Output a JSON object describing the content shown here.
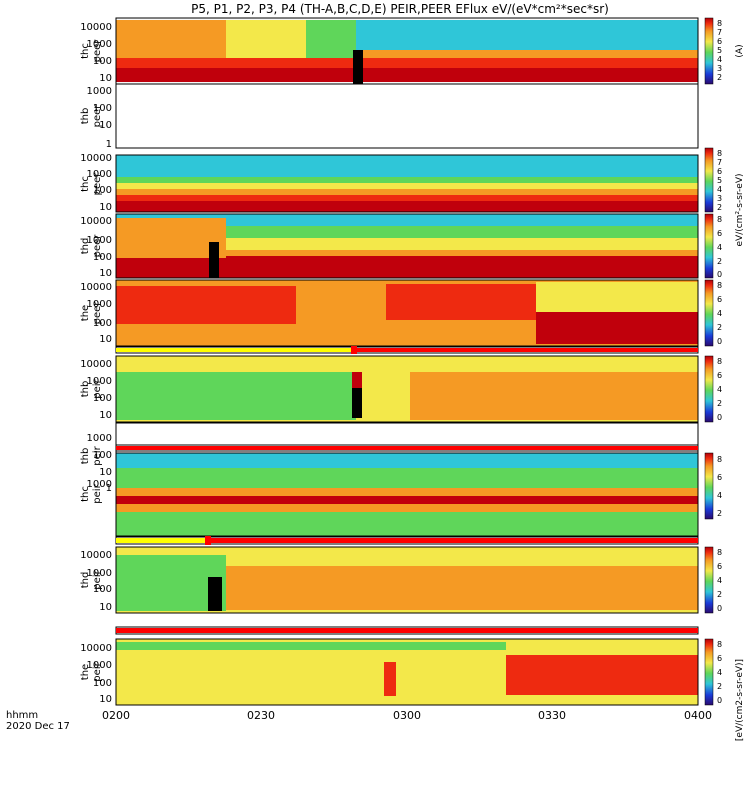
{
  "title": "P5, P1, P2, P3, P4 (TH-A,B,C,D,E) PEIR,PEER EFlux eV/(eV*cm²*sec*sr)",
  "time_axis": {
    "label_top": "hhmm",
    "label_bottom": "2020 Dec 17",
    "ticks": [
      "0200",
      "0230",
      "0300",
      "0330",
      "0400"
    ]
  },
  "colors": {
    "deep_red": "#c0000c",
    "red": "#ee2a10",
    "orange": "#f59a24",
    "yellow": "#f3e84a",
    "green": "#5fd65a",
    "cyan": "#2fc6d8",
    "blue": "#1a3bd8",
    "flag_red": "#ff0000",
    "flag_yellow": "#ffff00"
  },
  "chart_data": [
    {
      "type": "heatmap",
      "panel": "thc peer",
      "ylabel": [
        "thc",
        "peer"
      ],
      "yscale": "log",
      "ylim": [
        6,
        30000
      ],
      "yticks": [
        "10000",
        "1000",
        "100",
        "10"
      ],
      "colorbar": {
        "exponents": [
          "8",
          "7",
          "6",
          "5",
          "4",
          "3",
          "2"
        ],
        "label": "(A)"
      },
      "xlim": [
        "0200",
        "0400"
      ]
    },
    {
      "type": "heatmap",
      "panel": "thb peer",
      "ylabel": [
        "thb",
        "peer"
      ],
      "yscale": "log",
      "ylim": [
        0.6,
        1500
      ],
      "yticks": [
        "1000",
        "100",
        "10",
        "1"
      ],
      "empty": true
    },
    {
      "type": "heatmap",
      "panel": "thc peer",
      "ylabel": [
        "thc",
        "peer"
      ],
      "yscale": "log",
      "ylim": [
        6,
        15000
      ],
      "yticks": [
        "10000",
        "1000",
        "100",
        "10"
      ],
      "colorbar": {
        "exponents": [
          "8",
          "7",
          "6",
          "5",
          "4",
          "3",
          "2"
        ],
        "label": "eV/(cm²-s-sr-eV)"
      }
    },
    {
      "type": "heatmap",
      "panel": "thd peer",
      "ylabel": [
        "thd",
        "peer"
      ],
      "yscale": "log",
      "ylim": [
        7,
        20000
      ],
      "yticks": [
        "10000",
        "1000",
        "100",
        "10"
      ],
      "colorbar": {
        "exponents": [
          "8",
          "6",
          "4",
          "2",
          "0"
        ]
      }
    },
    {
      "type": "heatmap",
      "panel": "the peer",
      "ylabel": [
        "the",
        "peer"
      ],
      "yscale": "log",
      "ylim": [
        5,
        20000
      ],
      "yticks": [
        "10000",
        "1000",
        "100",
        "10"
      ],
      "colorbar": {
        "exponents": [
          "8",
          "6",
          "4",
          "2",
          "0"
        ]
      }
    },
    {
      "type": "heatmap",
      "panel": "thb peir",
      "ylabel": [
        "thb",
        "peir"
      ],
      "yscale": "log",
      "ylim": [
        6,
        30000
      ],
      "yticks": [
        "10000",
        "1000",
        "100",
        "10"
      ],
      "colorbar": {
        "exponents": [
          "8",
          "6",
          "4",
          "2",
          "0"
        ]
      }
    },
    {
      "type": "heatmap",
      "panel": "thb peir",
      "ylabel": [
        "thb",
        "peir"
      ],
      "yscale": "log",
      "ylim": [
        0.6,
        1500
      ],
      "yticks": [
        "1000",
        "100",
        "10",
        "1"
      ],
      "empty": true
    },
    {
      "type": "heatmap",
      "panel": "thc peir",
      "ylabel": [
        "thc",
        "peir"
      ],
      "yscale": "log",
      "ylim": [
        100,
        30000
      ],
      "yticks": [
        "1000"
      ],
      "colorbar": {
        "exponents": [
          "8",
          "6",
          "4",
          "2"
        ]
      }
    },
    {
      "type": "heatmap",
      "panel": "thd peir",
      "ylabel": [
        "thd",
        "peir"
      ],
      "yscale": "log",
      "ylim": [
        6,
        25000
      ],
      "yticks": [
        "10000",
        "1000",
        "100",
        "10"
      ],
      "colorbar": {
        "exponents": [
          "8",
          "6",
          "4",
          "2",
          "0"
        ]
      }
    },
    {
      "type": "heatmap",
      "panel": "the peir",
      "ylabel": [
        "the",
        "peir"
      ],
      "yscale": "log",
      "ylim": [
        6,
        25000
      ],
      "yticks": [
        "10000",
        "1000",
        "100",
        "10"
      ],
      "colorbar": {
        "exponents": [
          "8",
          "6",
          "4",
          "2",
          "0"
        ],
        "label": "[eV/(cm2-s-sr-eV)]"
      }
    }
  ]
}
